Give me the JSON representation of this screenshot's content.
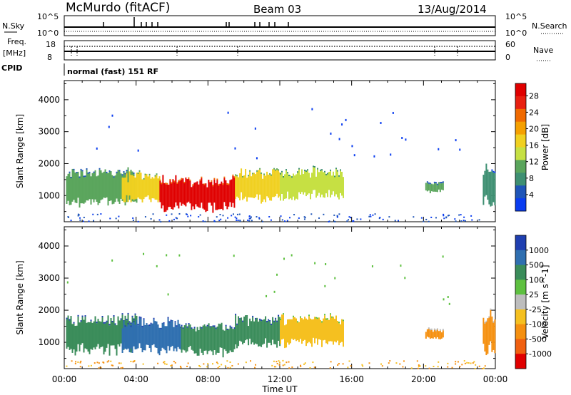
{
  "header": {
    "station": "McMurdo (fitACF)",
    "beam": "Beam 03",
    "date": "13/Aug/2014",
    "mode": "normal (fast) 151 RF"
  },
  "strip_labels": {
    "nsky": "N.Sky",
    "nsearch": "N.Search",
    "freq": "Freq.",
    "freq_unit": "[MHz]",
    "nave": "Nave",
    "cpid": "CPID",
    "nsky_ticks": [
      "10^5",
      "10^0"
    ],
    "nsearch_ticks": [
      "10^5",
      "10^0"
    ],
    "freq_ticks": [
      "18",
      "8"
    ],
    "nave_ticks": [
      "60",
      "0"
    ]
  },
  "chart_data": [
    {
      "type": "heatmap",
      "panel": "power",
      "xlabel": "",
      "ylabel": "Slant Range [km]",
      "y_ticks": [
        1000,
        2000,
        3000,
        4000
      ],
      "ylim": [
        180,
        4600
      ],
      "x_ticks": [
        "00:00",
        "04:00",
        "08:00",
        "12:00",
        "16:00",
        "20:00",
        "00:00"
      ],
      "xlim_hours": [
        0,
        24
      ],
      "colorbar": {
        "label": "Power [dB]",
        "ticks": [
          4,
          8,
          12,
          16,
          20,
          24,
          28
        ],
        "colors": [
          "#0a3df0",
          "#1f55b8",
          "#3e8f72",
          "#5aa55c",
          "#c6e043",
          "#f0d020",
          "#f5a000",
          "#f06a00",
          "#e82010",
          "#e00000"
        ]
      },
      "regions": [
        {
          "start_h": 0.1,
          "end_h": 4.0,
          "range_low": 700,
          "range_high": 1800,
          "level": 10
        },
        {
          "start_h": 3.2,
          "end_h": 5.3,
          "range_low": 800,
          "range_high": 1700,
          "level": 16
        },
        {
          "start_h": 5.3,
          "end_h": 9.5,
          "range_low": 550,
          "range_high": 1550,
          "level": 27
        },
        {
          "start_h": 9.5,
          "end_h": 12.0,
          "range_low": 850,
          "range_high": 1800,
          "level": 16
        },
        {
          "start_h": 12.0,
          "end_h": 15.5,
          "range_low": 900,
          "range_high": 1800,
          "level": 11
        },
        {
          "start_h": 20.1,
          "end_h": 21.1,
          "range_low": 1100,
          "range_high": 1400,
          "level": 8
        },
        {
          "start_h": 23.3,
          "end_h": 24.0,
          "range_low": 700,
          "range_high": 1900,
          "level": 7
        }
      ]
    },
    {
      "type": "heatmap",
      "panel": "velocity",
      "xlabel": "Time UT",
      "ylabel": "Slant Range [km]",
      "y_ticks": [
        1000,
        2000,
        3000,
        4000
      ],
      "ylim": [
        180,
        4600
      ],
      "x_ticks": [
        "00:00",
        "04:00",
        "08:00",
        "12:00",
        "16:00",
        "20:00",
        "00:00"
      ],
      "xlim_hours": [
        0,
        24
      ],
      "colorbar": {
        "label": "Velocity [m s^-1]",
        "ticks": [
          1000,
          500,
          100,
          25,
          -25,
          -100,
          -500,
          -1000
        ],
        "colors": [
          "#1f3fb0",
          "#2f6fb0",
          "#3a8c5a",
          "#5ec040",
          "#bdbdbd",
          "#f5c020",
          "#f59010",
          "#f06010",
          "#e00000"
        ]
      },
      "regions": [
        {
          "start_h": 0.1,
          "end_h": 4.0,
          "range_low": 700,
          "range_high": 1800,
          "velocity": 300
        },
        {
          "start_h": 3.2,
          "end_h": 6.5,
          "range_low": 700,
          "range_high": 1700,
          "velocity": 700
        },
        {
          "start_h": 6.5,
          "end_h": 9.5,
          "range_low": 600,
          "range_high": 1550,
          "velocity": 300
        },
        {
          "start_h": 9.5,
          "end_h": 12.0,
          "range_low": 850,
          "range_high": 1800,
          "velocity": 150
        },
        {
          "start_h": 12.0,
          "end_h": 15.5,
          "range_low": 900,
          "range_high": 1800,
          "velocity": -50
        },
        {
          "start_h": 20.1,
          "end_h": 21.1,
          "range_low": 1100,
          "range_high": 1400,
          "velocity": -300
        },
        {
          "start_h": 23.3,
          "end_h": 24.0,
          "range_low": 700,
          "range_high": 1900,
          "velocity": -300
        }
      ]
    }
  ]
}
